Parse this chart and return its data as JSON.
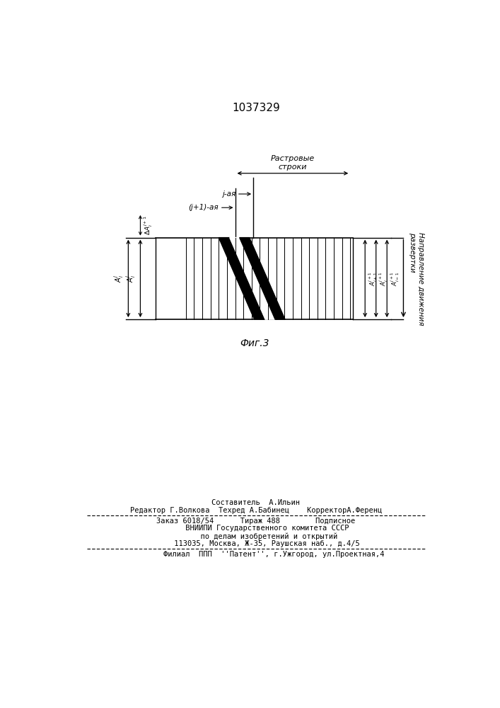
{
  "patent_number": "1037329",
  "fig_label": "Фиг.3",
  "bg_color": "#ffffff",
  "line_color": "#000000",
  "raster_label": "Растровые\nстроки",
  "j_label": "j-ая",
  "j1_label": "(j+1)-ая",
  "direction_label": "Направление движения\nразвертки",
  "footer_line1": "Составитель  А.Ильин",
  "footer_line2": "Редактор Г.Волкова  Техред А.Бабинец    КорректорА.Ференц",
  "footer_line3": "Заказ 6018/54      Тираж 488        Подписное",
  "footer_line4": "     ВНИИПИ Государственного комитета СССР",
  "footer_line5": "      по делам изобретений и открытий",
  "footer_line6": "     113035, Москва, Ж-35, Раушская наб., д.4/5",
  "footer_line7": "        Филиал  ППП  ''Патент'', г.Ужгород, ул.Проектная,4"
}
